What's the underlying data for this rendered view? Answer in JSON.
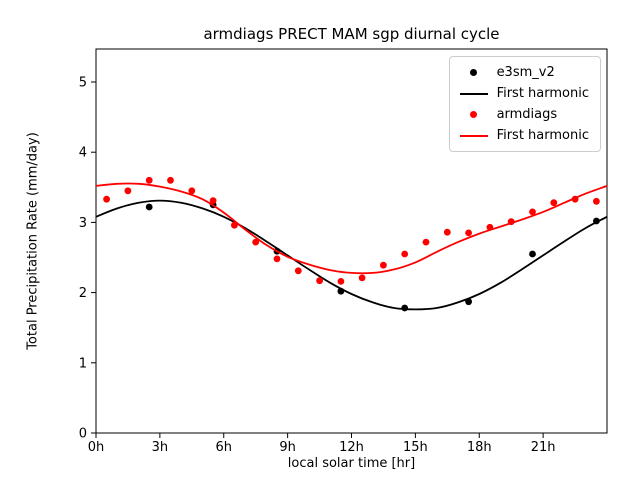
{
  "chart_data": {
    "type": "scatter",
    "title": "armdiags PRECT MAM sgp diurnal cycle",
    "xlabel": "local solar time [hr]",
    "ylabel": "Total Precipitation Rate (mm/day)",
    "xlim": [
      0,
      24
    ],
    "ylim": [
      0,
      5.47
    ],
    "grid": false,
    "legend_position": "upper right",
    "x_ticks": {
      "values": [
        0,
        3,
        6,
        9,
        12,
        15,
        18,
        21
      ],
      "labels": [
        "0h",
        "3h",
        "6h",
        "9h",
        "12h",
        "15h",
        "18h",
        "21h"
      ]
    },
    "y_ticks": {
      "values": [
        0,
        1,
        2,
        3,
        4,
        5
      ],
      "labels": [
        "0",
        "1",
        "2",
        "3",
        "4",
        "5"
      ]
    },
    "colors": {
      "model": "#000000",
      "obs": "#ff0000",
      "legend_border": "#cccccc"
    },
    "series": [
      {
        "name": "e3sm_v2",
        "type": "scatter",
        "color": "#000000",
        "x": [
          2.5,
          5.5,
          8.5,
          11.5,
          14.5,
          17.5,
          20.5,
          23.5
        ],
        "y": [
          3.22,
          3.25,
          2.59,
          2.02,
          1.78,
          1.87,
          2.55,
          3.02
        ]
      },
      {
        "name": "First harmonic",
        "type": "line",
        "color": "#000000",
        "x": [
          0,
          1,
          2,
          3,
          4,
          5,
          6,
          7,
          8,
          9,
          10,
          11,
          12,
          13,
          14,
          15,
          16,
          17,
          18,
          19,
          20,
          21,
          22,
          23,
          24
        ],
        "y": [
          3.08,
          3.2,
          3.28,
          3.31,
          3.28,
          3.2,
          3.08,
          2.92,
          2.73,
          2.53,
          2.33,
          2.14,
          1.98,
          1.86,
          1.78,
          1.76,
          1.78,
          1.86,
          1.98,
          2.14,
          2.33,
          2.53,
          2.73,
          2.92,
          3.08
        ]
      },
      {
        "name": "armdiags",
        "type": "scatter",
        "color": "#ff0000",
        "x": [
          0.5,
          1.5,
          2.5,
          3.5,
          4.5,
          5.5,
          6.5,
          7.5,
          8.5,
          9.5,
          10.5,
          11.5,
          12.5,
          13.5,
          14.5,
          15.5,
          16.5,
          17.5,
          18.5,
          19.5,
          20.5,
          21.5,
          22.5,
          23.5
        ],
        "y": [
          3.33,
          3.45,
          3.6,
          3.6,
          3.45,
          3.31,
          2.96,
          2.72,
          2.48,
          2.31,
          2.17,
          2.16,
          2.21,
          2.39,
          2.55,
          2.72,
          2.86,
          2.85,
          2.93,
          3.01,
          3.15,
          3.28,
          3.33,
          3.3
        ]
      },
      {
        "name": "First harmonic",
        "type": "line",
        "color": "#ff0000",
        "x": [
          0,
          1,
          2,
          3,
          4,
          5,
          6,
          7,
          8,
          9,
          10,
          11,
          12,
          13,
          14,
          15,
          16,
          17,
          18,
          19,
          20,
          21,
          22,
          23,
          24
        ],
        "y": [
          3.52,
          3.55,
          3.55,
          3.51,
          3.44,
          3.33,
          3.14,
          2.9,
          2.68,
          2.51,
          2.4,
          2.32,
          2.28,
          2.28,
          2.33,
          2.43,
          2.58,
          2.72,
          2.84,
          2.94,
          3.04,
          3.15,
          3.28,
          3.41,
          3.52
        ]
      }
    ],
    "legend": [
      {
        "label": "e3sm_v2",
        "marker": "dot",
        "color": "#000000"
      },
      {
        "label": "First harmonic",
        "marker": "line",
        "color": "#000000"
      },
      {
        "label": "armdiags",
        "marker": "dot",
        "color": "#ff0000"
      },
      {
        "label": "First harmonic",
        "marker": "line",
        "color": "#ff0000"
      }
    ]
  }
}
